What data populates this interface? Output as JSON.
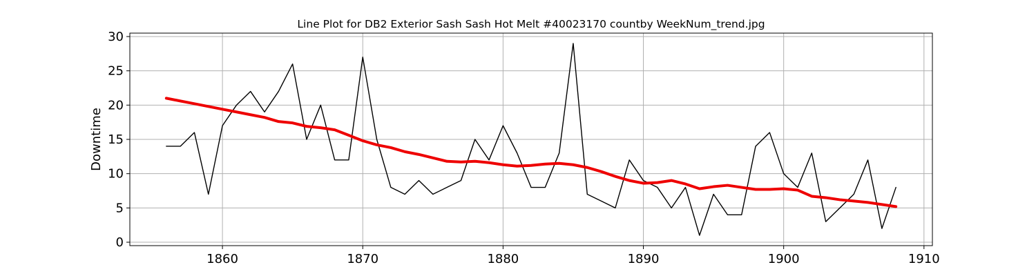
{
  "chart_data": {
    "type": "line",
    "title": "Line Plot for DB2 Exterior Sash Sash Hot Melt #40023170 countby WeekNum_trend.jpg",
    "xlabel": "",
    "ylabel": "Downtime",
    "xlim": [
      1853.4,
      1910.6
    ],
    "ylim": [
      -0.5,
      30.5
    ],
    "xticks": [
      1860,
      1870,
      1880,
      1890,
      1900,
      1910
    ],
    "yticks": [
      0,
      5,
      10,
      15,
      20,
      25,
      30
    ],
    "grid": true,
    "x": [
      1856,
      1857,
      1858,
      1859,
      1860,
      1861,
      1862,
      1863,
      1864,
      1865,
      1866,
      1867,
      1868,
      1869,
      1870,
      1871,
      1872,
      1873,
      1874,
      1875,
      1876,
      1877,
      1878,
      1879,
      1880,
      1881,
      1882,
      1883,
      1884,
      1885,
      1886,
      1887,
      1888,
      1889,
      1890,
      1891,
      1892,
      1893,
      1894,
      1895,
      1896,
      1897,
      1898,
      1899,
      1900,
      1901,
      1902,
      1903,
      1904,
      1905,
      1906,
      1907,
      1908
    ],
    "series": [
      {
        "color": "#000000",
        "values": [
          14,
          14,
          16,
          7,
          17,
          20,
          22,
          19,
          22,
          26,
          15,
          20,
          12,
          12,
          27,
          15,
          8,
          7,
          9,
          7,
          8,
          9,
          15,
          12,
          17,
          13,
          8,
          8,
          13,
          29,
          7,
          6,
          5,
          12,
          9,
          8,
          5,
          8,
          1,
          7,
          4,
          4,
          14,
          16,
          10,
          8,
          13,
          3,
          5,
          7,
          12,
          2,
          8
        ]
      },
      {
        "color": "#ee0000",
        "values": [
          21,
          20.6,
          20.2,
          19.8,
          19.4,
          19.0,
          18.6,
          18.2,
          17.6,
          17.4,
          16.9,
          16.7,
          16.4,
          15.6,
          14.8,
          14.2,
          13.8,
          13.2,
          12.8,
          12.3,
          11.8,
          11.7,
          11.8,
          11.6,
          11.3,
          11.1,
          11.2,
          11.4,
          11.5,
          11.3,
          10.9,
          10.3,
          9.6,
          9.0,
          8.6,
          8.7,
          9.0,
          8.5,
          7.8,
          8.1,
          8.3,
          8.0,
          7.7,
          7.7,
          7.8,
          7.6,
          6.7,
          6.5,
          6.2,
          6.0,
          5.8,
          5.5,
          5.2
        ]
      }
    ]
  }
}
